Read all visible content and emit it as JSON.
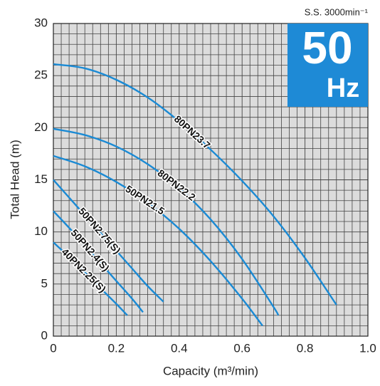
{
  "chart_data": {
    "type": "line",
    "x_label": "Capacity (m³/min)",
    "y_label": "Total Head (m)",
    "speed_note": "S.S. 3000min⁻¹",
    "badge_number": "50",
    "badge_unit": "Hz",
    "xlim": [
      0,
      1
    ],
    "ylim": [
      0,
      30
    ],
    "xticks": [
      0,
      0.2,
      0.4,
      0.6,
      0.8,
      {
        "value": 1,
        "label": "1.0"
      }
    ],
    "yticks": [
      0,
      5,
      10,
      15,
      20,
      25,
      30
    ],
    "grid": true,
    "color": "#1a8ad4",
    "badge_color": "#1e8ad6",
    "series": [
      {
        "name": "80PN23.7",
        "x": [
          0,
          0.1,
          0.2,
          0.3,
          0.4,
          0.5,
          0.6,
          0.7,
          0.8,
          0.9
        ],
        "values": [
          26.1,
          25.7,
          24.6,
          22.9,
          20.6,
          17.9,
          14.9,
          11.5,
          7.5,
          3
        ]
      },
      {
        "name": "80PN22.2",
        "x": [
          0,
          0.1,
          0.2,
          0.3,
          0.4,
          0.5,
          0.6,
          0.7,
          0.715
        ],
        "values": [
          19.9,
          19.3,
          18.2,
          16.5,
          14.2,
          11.2,
          7.4,
          2.8,
          2
        ]
      },
      {
        "name": "50PN21.5",
        "x": [
          0,
          0.1,
          0.2,
          0.3,
          0.4,
          0.5,
          0.6,
          0.665
        ],
        "values": [
          17.3,
          16.3,
          14.8,
          12.8,
          10.3,
          7.2,
          3.6,
          1
        ]
      },
      {
        "name": "50PN2.75(S)",
        "x": [
          0,
          0.05,
          0.1,
          0.15,
          0.2,
          0.25,
          0.3,
          0.35
        ],
        "values": [
          15,
          13.3,
          11.6,
          9.9,
          8.2,
          6.5,
          4.8,
          3.3
        ]
      },
      {
        "name": "50PN2.4(S)",
        "x": [
          0,
          0.05,
          0.1,
          0.15,
          0.2,
          0.25,
          0.285
        ],
        "values": [
          12,
          10.4,
          8.7,
          7,
          5.3,
          3.6,
          2.3
        ]
      },
      {
        "name": "40PN2.25(S)",
        "x": [
          0,
          0.05,
          0.1,
          0.15,
          0.2,
          0.235
        ],
        "values": [
          9,
          7.6,
          6.1,
          4.6,
          3.1,
          2
        ]
      }
    ]
  }
}
